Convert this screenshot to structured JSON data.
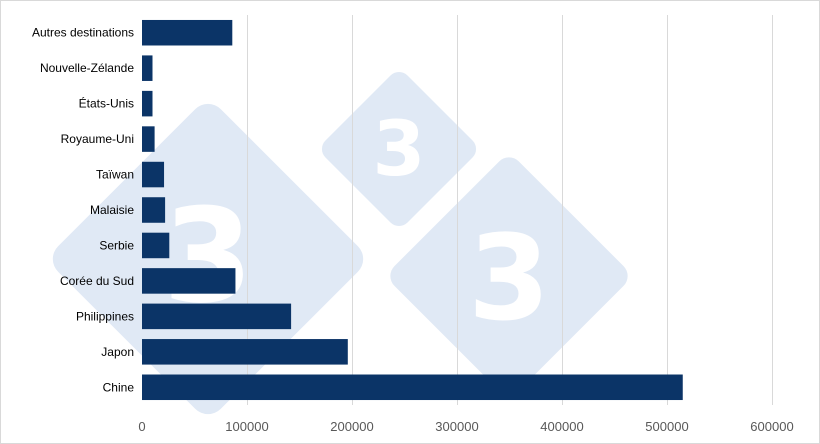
{
  "chart_data": {
    "type": "bar",
    "orientation": "horizontal",
    "categories": [
      "Chine",
      "Japon",
      "Philippines",
      "Corée du Sud",
      "Serbie",
      "Malaisie",
      "Taïwan",
      "Royaume-Uni",
      "États-Unis",
      "Nouvelle-Zélande",
      "Autres destinations"
    ],
    "values": [
      515000,
      196000,
      142000,
      89000,
      26000,
      22000,
      21000,
      12000,
      10000,
      10000,
      86000
    ],
    "title": "",
    "xlabel": "",
    "ylabel": "",
    "xlim": [
      0,
      600000
    ],
    "xticks": [
      0,
      100000,
      200000,
      300000,
      400000,
      500000,
      600000
    ],
    "grid": "vertical",
    "legend": "none",
    "bar_color": "#0b3467"
  },
  "watermark": {
    "glyph": "3",
    "color": "#d6e1f1"
  }
}
